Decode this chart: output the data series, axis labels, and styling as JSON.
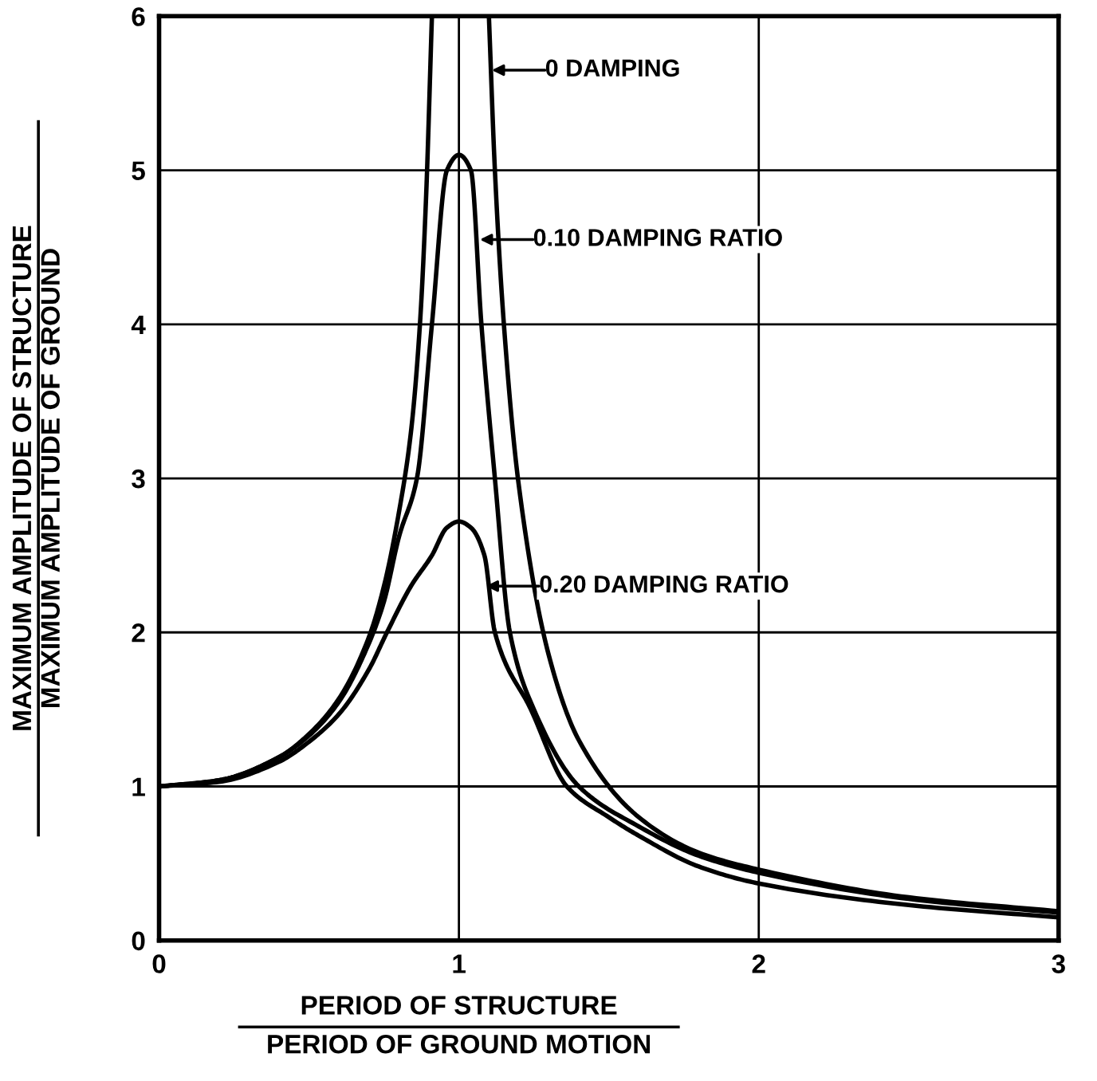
{
  "chart_data": {
    "type": "line",
    "xlabel": "PERIOD OF STRUCTURE\nPERIOD OF GROUND MOTION",
    "ylabel": "MAXIMUM AMPLITUDE OF STRUCTURE\nMAXIMUM AMPLITUDE OF GROUND",
    "xlim": [
      0,
      3
    ],
    "ylim": [
      0,
      6
    ],
    "xticks": [
      0,
      1,
      2,
      3
    ],
    "yticks": [
      0,
      1,
      2,
      3,
      4,
      5,
      6
    ],
    "grid": true,
    "marker": "none",
    "line_style": "solid",
    "series": [
      {
        "color": "#000000",
        "x": [
          0,
          0.2,
          0.4,
          0.5,
          0.6,
          0.7,
          0.75,
          0.8,
          0.84,
          0.87,
          0.89,
          0.91,
          null,
          1.1,
          1.12,
          1.15,
          1.2,
          1.3,
          1.4,
          1.6,
          1.8,
          2,
          2.5,
          3
        ],
        "values": [
          1,
          1.04,
          1.19,
          1.34,
          1.57,
          1.97,
          2.3,
          2.78,
          3.3,
          4.0,
          4.8,
          6,
          null,
          6,
          5.0,
          4.0,
          2.95,
          1.85,
          1.3,
          0.8,
          0.57,
          0.46,
          0.28,
          0.19
        ]
      },
      {
        "color": "#000000",
        "x": [
          0,
          0.2,
          0.4,
          0.5,
          0.6,
          0.7,
          0.75,
          0.8,
          0.86,
          0.91,
          0.96,
          1.0,
          1.04,
          1.075,
          1.12,
          1.17,
          1.25,
          1.4,
          1.6,
          1.8,
          2,
          2.5,
          3
        ],
        "values": [
          1,
          1.04,
          1.19,
          1.33,
          1.55,
          1.93,
          2.2,
          2.62,
          3.0,
          4.0,
          5.0,
          5.1,
          5.0,
          4.0,
          3.0,
          2.0,
          1.5,
          1.0,
          0.74,
          0.55,
          0.44,
          0.27,
          0.18
        ]
      },
      {
        "color": "#000000",
        "x": [
          0,
          0.2,
          0.4,
          0.5,
          0.6,
          0.7,
          0.76,
          0.84,
          0.91,
          0.96,
          1.0,
          1.04,
          1.085,
          1.12,
          1.24,
          1.36,
          1.5,
          1.6,
          1.8,
          2,
          2.5,
          3
        ],
        "values": [
          1,
          1.03,
          1.16,
          1.29,
          1.47,
          1.76,
          2.0,
          2.3,
          2.5,
          2.68,
          2.72,
          2.68,
          2.5,
          2.0,
          1.5,
          1.0,
          0.8,
          0.68,
          0.48,
          0.37,
          0.23,
          0.15
        ]
      }
    ],
    "annotations": [
      {
        "text": "0 DAMPING",
        "x": 1.11,
        "y": 5.65
      },
      {
        "text": "0.10 DAMPING RATIO",
        "x": 1.07,
        "y": 4.55
      },
      {
        "text": "0.20 DAMPING RATIO",
        "x": 1.09,
        "y": 2.3
      }
    ]
  }
}
